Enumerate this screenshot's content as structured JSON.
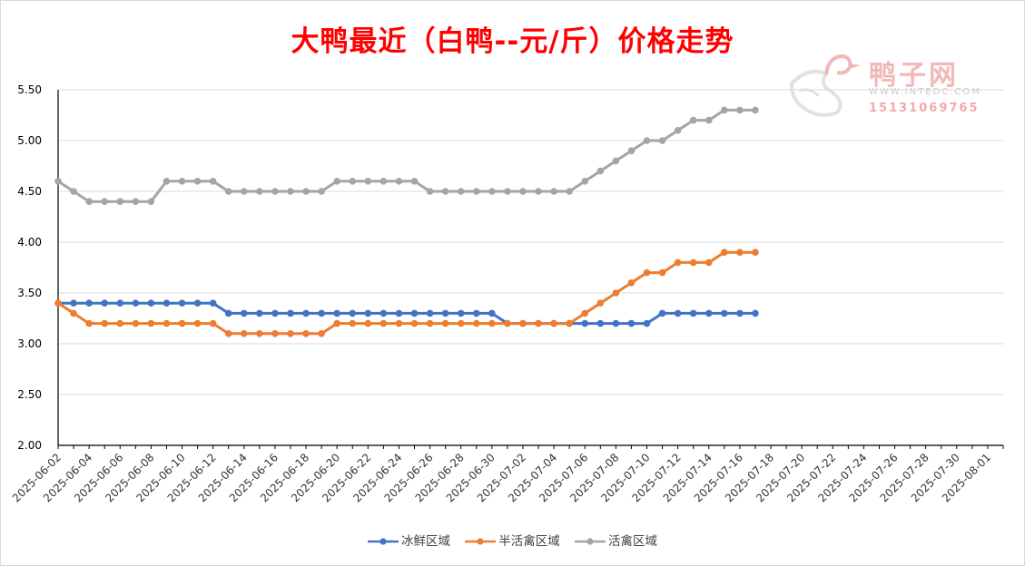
{
  "title": "大鸭最近（白鸭--元/斤）价格走势",
  "watermark": {
    "name": "鸭子网",
    "url": "WWW.INTEDC.COM",
    "phone": "15131069765"
  },
  "legend": [
    "冰鲜区域",
    "半活禽区域",
    "活禽区域"
  ],
  "chart_data": {
    "type": "line",
    "title": "大鸭最近（白鸭--元/斤）价格走势",
    "xlabel": "",
    "ylabel": "",
    "ylim": [
      2.0,
      5.5
    ],
    "yticks": [
      "2.00",
      "2.50",
      "3.00",
      "3.50",
      "4.00",
      "4.50",
      "5.00",
      "5.50"
    ],
    "xlim": [
      "2025-06-02",
      "2025-08-02"
    ],
    "xticks": [
      "2025-06-02",
      "2025-06-04",
      "2025-06-06",
      "2025-06-08",
      "2025-06-10",
      "2025-06-12",
      "2025-06-14",
      "2025-06-16",
      "2025-06-18",
      "2025-06-20",
      "2025-06-22",
      "2025-06-24",
      "2025-06-26",
      "2025-06-28",
      "2025-06-30",
      "2025-07-02",
      "2025-07-04",
      "2025-07-06",
      "2025-07-08",
      "2025-07-10",
      "2025-07-12",
      "2025-07-14",
      "2025-07-16",
      "2025-07-18",
      "2025-07-20",
      "2025-07-22",
      "2025-07-24",
      "2025-07-26",
      "2025-07-28",
      "2025-07-30",
      "2025-08-01"
    ],
    "grid": true,
    "legend_position": "bottom",
    "x": [
      "2025-06-02",
      "2025-06-03",
      "2025-06-04",
      "2025-06-05",
      "2025-06-06",
      "2025-06-07",
      "2025-06-08",
      "2025-06-09",
      "2025-06-10",
      "2025-06-11",
      "2025-06-12",
      "2025-06-13",
      "2025-06-14",
      "2025-06-15",
      "2025-06-16",
      "2025-06-17",
      "2025-06-18",
      "2025-06-19",
      "2025-06-20",
      "2025-06-21",
      "2025-06-22",
      "2025-06-23",
      "2025-06-24",
      "2025-06-25",
      "2025-06-26",
      "2025-06-27",
      "2025-06-28",
      "2025-06-29",
      "2025-06-30",
      "2025-07-01",
      "2025-07-02",
      "2025-07-03",
      "2025-07-04",
      "2025-07-05",
      "2025-07-06",
      "2025-07-07",
      "2025-07-08",
      "2025-07-09",
      "2025-07-10",
      "2025-07-11",
      "2025-07-12",
      "2025-07-13",
      "2025-07-14",
      "2025-07-15",
      "2025-07-16",
      "2025-07-17"
    ],
    "series": [
      {
        "name": "冰鲜区域",
        "color": "#4472c4",
        "values": [
          3.4,
          3.4,
          3.4,
          3.4,
          3.4,
          3.4,
          3.4,
          3.4,
          3.4,
          3.4,
          3.4,
          3.3,
          3.3,
          3.3,
          3.3,
          3.3,
          3.3,
          3.3,
          3.3,
          3.3,
          3.3,
          3.3,
          3.3,
          3.3,
          3.3,
          3.3,
          3.3,
          3.3,
          3.3,
          3.2,
          3.2,
          3.2,
          3.2,
          3.2,
          3.2,
          3.2,
          3.2,
          3.2,
          3.2,
          3.3,
          3.3,
          3.3,
          3.3,
          3.3,
          3.3,
          3.3
        ]
      },
      {
        "name": "半活禽区域",
        "color": "#ed7d31",
        "values": [
          3.4,
          3.3,
          3.2,
          3.2,
          3.2,
          3.2,
          3.2,
          3.2,
          3.2,
          3.2,
          3.2,
          3.1,
          3.1,
          3.1,
          3.1,
          3.1,
          3.1,
          3.1,
          3.2,
          3.2,
          3.2,
          3.2,
          3.2,
          3.2,
          3.2,
          3.2,
          3.2,
          3.2,
          3.2,
          3.2,
          3.2,
          3.2,
          3.2,
          3.2,
          3.3,
          3.4,
          3.5,
          3.6,
          3.7,
          3.7,
          3.8,
          3.8,
          3.8,
          3.9,
          3.9,
          3.9
        ]
      },
      {
        "name": "活禽区域",
        "color": "#a5a5a5",
        "values": [
          4.6,
          4.5,
          4.4,
          4.4,
          4.4,
          4.4,
          4.4,
          4.6,
          4.6,
          4.6,
          4.6,
          4.5,
          4.5,
          4.5,
          4.5,
          4.5,
          4.5,
          4.5,
          4.6,
          4.6,
          4.6,
          4.6,
          4.6,
          4.6,
          4.5,
          4.5,
          4.5,
          4.5,
          4.5,
          4.5,
          4.5,
          4.5,
          4.5,
          4.5,
          4.6,
          4.7,
          4.8,
          4.9,
          5.0,
          5.0,
          5.1,
          5.2,
          5.2,
          5.3,
          5.3,
          5.3
        ]
      }
    ]
  }
}
